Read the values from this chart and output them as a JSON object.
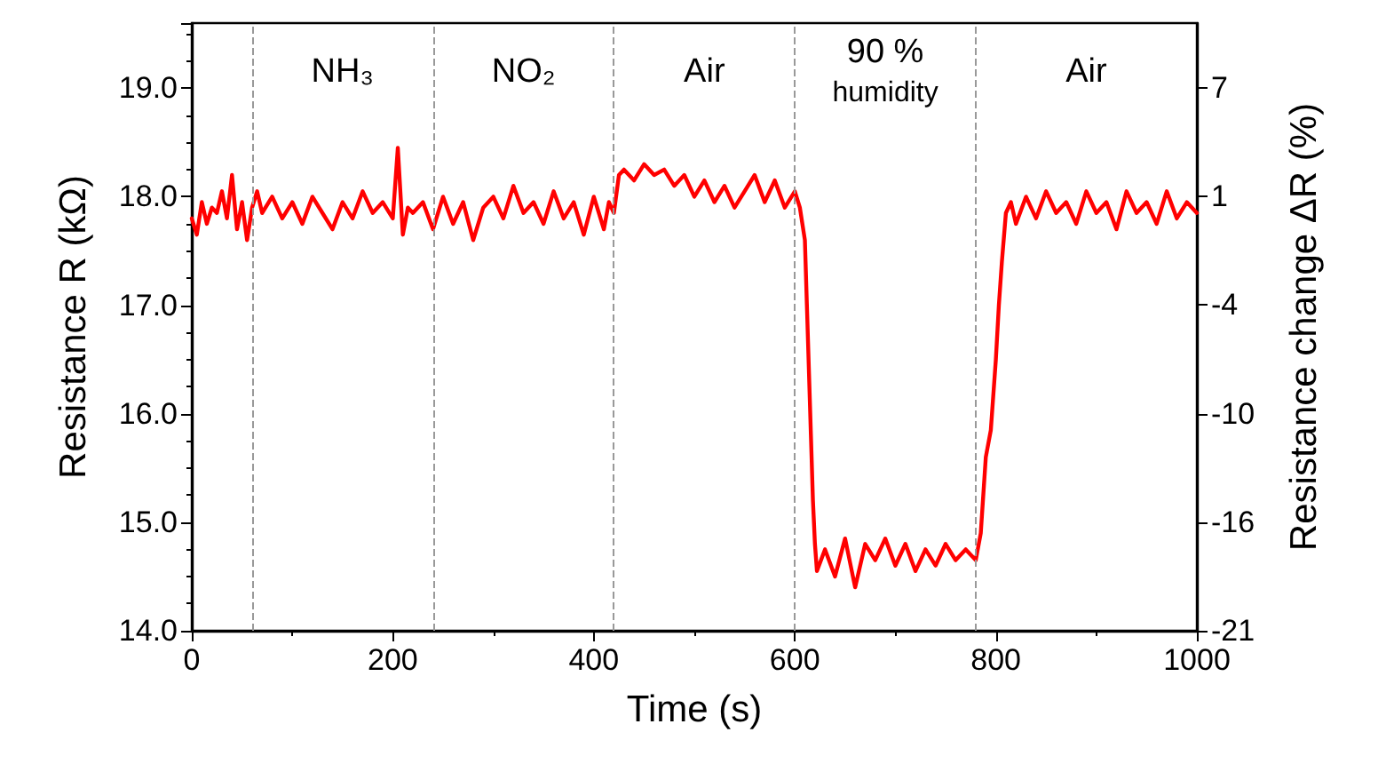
{
  "chart_data": {
    "type": "line",
    "xlabel": "Time (s)",
    "ylabel": "Resistance R (kΩ)",
    "y2label": "Resistance change ΔR (%)",
    "x": [
      0,
      5,
      10,
      15,
      20,
      25,
      30,
      35,
      40,
      45,
      50,
      55,
      60,
      65,
      70,
      80,
      90,
      100,
      110,
      120,
      130,
      140,
      150,
      160,
      170,
      180,
      190,
      200,
      205,
      210,
      215,
      220,
      230,
      240,
      250,
      260,
      270,
      280,
      290,
      300,
      310,
      320,
      330,
      340,
      350,
      360,
      370,
      380,
      390,
      400,
      410,
      415,
      420,
      425,
      430,
      440,
      450,
      460,
      470,
      480,
      490,
      500,
      510,
      520,
      530,
      540,
      550,
      560,
      570,
      580,
      590,
      600,
      605,
      610,
      612,
      614,
      616,
      618,
      620,
      622,
      630,
      640,
      650,
      660,
      670,
      680,
      690,
      700,
      710,
      720,
      730,
      740,
      750,
      760,
      770,
      780,
      785,
      790,
      795,
      800,
      803,
      806,
      810,
      815,
      820,
      830,
      840,
      850,
      860,
      870,
      880,
      890,
      900,
      910,
      920,
      930,
      940,
      950,
      960,
      970,
      980,
      990,
      1000
    ],
    "series": [
      {
        "color": "#ff0000",
        "values": [
          17.8,
          17.65,
          17.95,
          17.75,
          17.9,
          17.85,
          18.05,
          17.8,
          18.2,
          17.7,
          17.95,
          17.6,
          17.9,
          18.05,
          17.85,
          18.0,
          17.8,
          17.95,
          17.75,
          18.0,
          17.85,
          17.7,
          17.95,
          17.8,
          18.05,
          17.85,
          17.95,
          17.8,
          18.45,
          17.65,
          17.9,
          17.85,
          17.95,
          17.7,
          18.0,
          17.75,
          17.95,
          17.6,
          17.9,
          18.0,
          17.8,
          18.1,
          17.85,
          17.95,
          17.75,
          18.05,
          17.8,
          17.95,
          17.65,
          18.0,
          17.7,
          17.95,
          17.85,
          18.2,
          18.25,
          18.15,
          18.3,
          18.2,
          18.25,
          18.1,
          18.2,
          18.0,
          18.15,
          17.95,
          18.1,
          17.9,
          18.05,
          18.2,
          17.95,
          18.15,
          17.9,
          18.05,
          17.9,
          17.6,
          17.0,
          16.4,
          15.8,
          15.2,
          14.8,
          14.55,
          14.75,
          14.5,
          14.85,
          14.4,
          14.8,
          14.65,
          14.85,
          14.6,
          14.8,
          14.55,
          14.75,
          14.6,
          14.8,
          14.65,
          14.75,
          14.65,
          14.9,
          15.6,
          15.85,
          16.5,
          17.0,
          17.4,
          17.85,
          17.95,
          17.75,
          18.0,
          17.8,
          18.05,
          17.85,
          17.95,
          17.75,
          18.05,
          17.85,
          17.95,
          17.7,
          18.05,
          17.85,
          17.95,
          17.75,
          18.05,
          17.8,
          17.95,
          17.85
        ]
      }
    ],
    "xlim": [
      0,
      1000
    ],
    "xticks": [
      0,
      200,
      400,
      600,
      800,
      1000
    ],
    "ylim": [
      14,
      19.6
    ],
    "yticks": [
      {
        "value": 14,
        "label": "14.0"
      },
      {
        "value": 15,
        "label": "15.0"
      },
      {
        "value": 16,
        "label": "16.0"
      },
      {
        "value": 17,
        "label": "17.0"
      },
      {
        "value": 18,
        "label": "18.0"
      },
      {
        "value": 19,
        "label": "19.0"
      }
    ],
    "y2lim": [
      -21.35,
      10.11
    ],
    "y2ticks": [
      {
        "value": -21.35,
        "label": "-21"
      },
      {
        "value": -15.73,
        "label": "-16"
      },
      {
        "value": -10.11,
        "label": "-10"
      },
      {
        "value": -4.49,
        "label": "-4"
      },
      {
        "value": 1.12,
        "label": "1"
      },
      {
        "value": 6.74,
        "label": "7"
      }
    ],
    "ref_lines": [
      {
        "axis": "x",
        "value": 60,
        "color": "#999999",
        "line_style": "dashed"
      },
      {
        "axis": "x",
        "value": 240,
        "color": "#999999",
        "line_style": "dashed"
      },
      {
        "axis": "x",
        "value": 420,
        "color": "#999999",
        "line_style": "dashed"
      },
      {
        "axis": "x",
        "value": 600,
        "color": "#999999",
        "line_style": "dashed"
      },
      {
        "axis": "x",
        "value": 780,
        "color": "#999999",
        "line_style": "dashed"
      }
    ],
    "annotations": [
      "NH₃",
      "NO₂",
      "Air",
      "90 %\nhumidity",
      "Air"
    ],
    "grid": false,
    "marker": "none",
    "line_style": "solid"
  }
}
